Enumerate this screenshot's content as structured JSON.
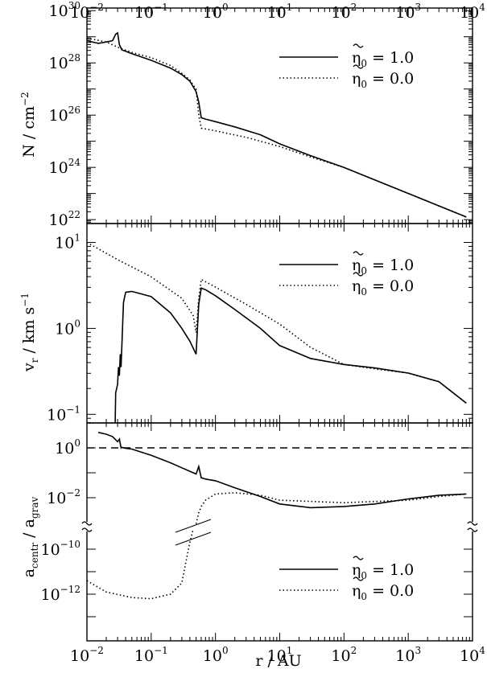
{
  "chart_data": [
    {
      "type": "line",
      "panel": "top",
      "ylabel": "N / cm",
      "ylabel_sup": "−2",
      "x_scale": "log",
      "y_scale": "log",
      "xlim": [
        0.01,
        10000
      ],
      "ylim_exp": [
        21.85,
        30.1
      ],
      "x_ticks_exp": [
        "−2",
        "−1",
        "0",
        "1",
        "2",
        "3",
        "4"
      ],
      "y_ticks_exp": [
        "22",
        "24",
        "26",
        "28",
        "30"
      ],
      "legend_placement": "top-right",
      "series": [
        {
          "name": "1.0",
          "style": "solid",
          "x": [
            0.01,
            0.015,
            0.02,
            0.025,
            0.028,
            0.03,
            0.032,
            0.035,
            0.05,
            0.1,
            0.2,
            0.3,
            0.4,
            0.5,
            0.55,
            0.6,
            0.7,
            1,
            2,
            5,
            10,
            30,
            100,
            1000,
            8000
          ],
          "log_y": [
            28.85,
            28.75,
            28.8,
            28.85,
            29.1,
            29.15,
            28.7,
            28.5,
            28.35,
            28.1,
            27.8,
            27.55,
            27.3,
            26.9,
            26.5,
            25.9,
            25.85,
            25.75,
            25.55,
            25.25,
            24.9,
            24.45,
            24.0,
            23.0,
            22.1
          ]
        },
        {
          "name": "0.0",
          "style": "dotted",
          "x": [
            0.01,
            0.02,
            0.03,
            0.05,
            0.1,
            0.2,
            0.3,
            0.4,
            0.5,
            0.55,
            0.6,
            1,
            3,
            10,
            30,
            100,
            1000,
            8000
          ],
          "log_y": [
            28.95,
            28.8,
            28.6,
            28.4,
            28.2,
            27.9,
            27.6,
            27.35,
            27.0,
            26.0,
            25.5,
            25.4,
            25.15,
            24.8,
            24.4,
            24.0,
            23.0,
            22.1
          ]
        }
      ]
    },
    {
      "type": "line",
      "panel": "middle",
      "ylabel": "v",
      "ylabel_sub": "r",
      "ylabel_unit": " / km s",
      "ylabel_sup": "−1",
      "x_scale": "log",
      "y_scale": "log",
      "xlim": [
        0.01,
        10000
      ],
      "ylim_exp": [
        -1.1,
        1.22
      ],
      "y_ticks_exp": [
        "−1",
        "0",
        "1"
      ],
      "legend_placement": "top-right",
      "series": [
        {
          "name": "1.0",
          "style": "solid",
          "x": [
            0.0275,
            0.028,
            0.03,
            0.031,
            0.032,
            0.033,
            0.034,
            0.035,
            0.037,
            0.04,
            0.05,
            0.1,
            0.2,
            0.3,
            0.4,
            0.5,
            0.55,
            0.6,
            0.7,
            1,
            2,
            5,
            10,
            30,
            100,
            300,
            1000,
            3000,
            8000
          ],
          "log_y": [
            -1.1,
            -0.75,
            -0.65,
            -0.45,
            -0.55,
            -0.3,
            -0.45,
            -0.2,
            0.3,
            0.42,
            0.43,
            0.37,
            0.18,
            0.0,
            -0.15,
            -0.3,
            0.28,
            0.47,
            0.45,
            0.38,
            0.22,
            0.0,
            -0.2,
            -0.35,
            -0.42,
            -0.46,
            -0.52,
            -0.62,
            -0.87
          ]
        },
        {
          "name": "0.0",
          "style": "dotted",
          "x": [
            0.01,
            0.03,
            0.1,
            0.3,
            0.45,
            0.5,
            0.55,
            0.6,
            1,
            3,
            10,
            30,
            100,
            300,
            1000,
            3000,
            8000
          ],
          "log_y": [
            1.0,
            0.8,
            0.6,
            0.35,
            0.15,
            -0.05,
            0.35,
            0.57,
            0.48,
            0.28,
            0.05,
            -0.22,
            -0.42,
            -0.47,
            -0.52,
            -0.62,
            -0.87
          ]
        }
      ]
    },
    {
      "type": "line",
      "panel": "bottom",
      "ylabel": "a",
      "ylabel_sub1": "centr",
      "ylabel_mid": " / a",
      "ylabel_sub2": "grav",
      "x_scale": "log",
      "y_scale": "log (broken axis)",
      "xlim": [
        0.01,
        10000
      ],
      "xlabel": "r / AU",
      "y_ticks_exp_upper": [
        "0",
        "−2"
      ],
      "y_ticks_exp_lower": [
        "−10",
        "−12"
      ],
      "reference_line": {
        "style": "dashed",
        "log_y": 0
      },
      "legend_placement": "bottom-right",
      "series": [
        {
          "name": "1.0",
          "style": "solid",
          "x": [
            0.015,
            0.02,
            0.025,
            0.03,
            0.032,
            0.034,
            0.035,
            0.04,
            0.05,
            0.1,
            0.2,
            0.3,
            0.5,
            0.55,
            0.6,
            0.7,
            1,
            2,
            5,
            10,
            30,
            100,
            300,
            1000,
            3000,
            8000
          ],
          "log_y": [
            0.62,
            0.55,
            0.45,
            0.25,
            0.35,
            0.0,
            0.02,
            -0.02,
            -0.05,
            -0.3,
            -0.6,
            -0.8,
            -1.05,
            -0.75,
            -1.2,
            -1.25,
            -1.32,
            -1.6,
            -1.95,
            -2.25,
            -2.4,
            -2.35,
            -2.25,
            -2.05,
            -1.9,
            -1.85
          ]
        },
        {
          "name": "0.0",
          "style": "dotted",
          "x": [
            0.01,
            0.02,
            0.05,
            0.1,
            0.2,
            0.3,
            0.35,
            0.4,
            0.45,
            0.5,
            0.55,
            0.6,
            0.7,
            1,
            2,
            5,
            10,
            100,
            1000,
            3000,
            8000
          ],
          "log_y_lower": [
            -11.4,
            -11.9,
            -12.15,
            -12.2,
            -12.0,
            -11.5,
            -10.5,
            -9.7,
            -9.1
          ],
          "log_y_upper": [
            -3.05,
            -2.6,
            -2.35,
            -2.1,
            -1.85,
            -1.8,
            -1.9,
            -2.1,
            -2.2,
            -2.1,
            -1.95,
            -1.85
          ]
        }
      ]
    }
  ],
  "legend": {
    "symbol_base": "η",
    "symbol_sub": "0",
    "values": [
      "1.0",
      "0.0"
    ]
  }
}
